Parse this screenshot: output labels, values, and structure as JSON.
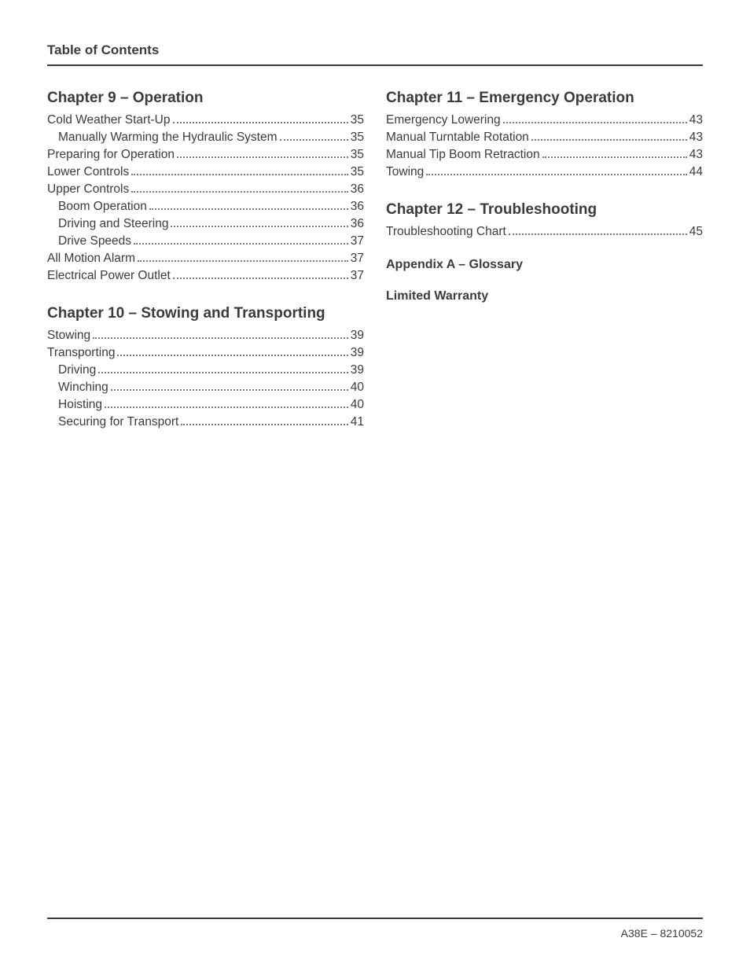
{
  "colors": {
    "text": "#3b3b3b",
    "rule": "#3b3b3b",
    "leader": "#777777",
    "background": "#ffffff"
  },
  "typography": {
    "header_fontsize": 17,
    "chapter_fontsize": 19,
    "entry_fontsize": 15.5,
    "appendix_fontsize": 16,
    "footer_fontsize": 14,
    "font_family": "Arial"
  },
  "header": {
    "title": "Table of Contents"
  },
  "left_column": {
    "sections": [
      {
        "title": "Chapter 9 – Operation",
        "entries": [
          {
            "label": "Cold Weather Start-Up",
            "page": "35",
            "indent": 0
          },
          {
            "label": "Manually Warming the Hydraulic System",
            "page": "35",
            "indent": 1
          },
          {
            "label": "Preparing for Operation",
            "page": "35",
            "indent": 0
          },
          {
            "label": "Lower Controls",
            "page": "35",
            "indent": 0
          },
          {
            "label": "Upper Controls",
            "page": "36",
            "indent": 0
          },
          {
            "label": "Boom Operation",
            "page": "36",
            "indent": 1
          },
          {
            "label": "Driving and Steering",
            "page": "36",
            "indent": 1
          },
          {
            "label": "Drive Speeds",
            "page": "37",
            "indent": 1
          },
          {
            "label": "All Motion Alarm",
            "page": "37",
            "indent": 0
          },
          {
            "label": "Electrical Power Outlet",
            "page": "37",
            "indent": 0
          }
        ]
      },
      {
        "title": "Chapter 10 – Stowing and Transporting",
        "entries": [
          {
            "label": "Stowing",
            "page": "39",
            "indent": 0
          },
          {
            "label": "Transporting",
            "page": "39",
            "indent": 0
          },
          {
            "label": "Driving",
            "page": "39",
            "indent": 1
          },
          {
            "label": "Winching",
            "page": "40",
            "indent": 1
          },
          {
            "label": "Hoisting",
            "page": "40",
            "indent": 1
          },
          {
            "label": "Securing for Transport",
            "page": "41",
            "indent": 1
          }
        ]
      }
    ]
  },
  "right_column": {
    "sections": [
      {
        "title": "Chapter 11 – Emergency Operation",
        "entries": [
          {
            "label": "Emergency Lowering",
            "page": "43",
            "indent": 0
          },
          {
            "label": "Manual Turntable Rotation",
            "page": "43",
            "indent": 0
          },
          {
            "label": "Manual Tip Boom Retraction",
            "page": "43",
            "indent": 0
          },
          {
            "label": "Towing",
            "page": "44",
            "indent": 0
          }
        ]
      },
      {
        "title": "Chapter 12 – Troubleshooting",
        "entries": [
          {
            "label": "Troubleshooting Chart",
            "page": "45",
            "indent": 0
          }
        ]
      }
    ],
    "appendices": [
      "Appendix A – Glossary",
      "Limited Warranty"
    ]
  },
  "footer": {
    "text": "A38E – 8210052"
  }
}
